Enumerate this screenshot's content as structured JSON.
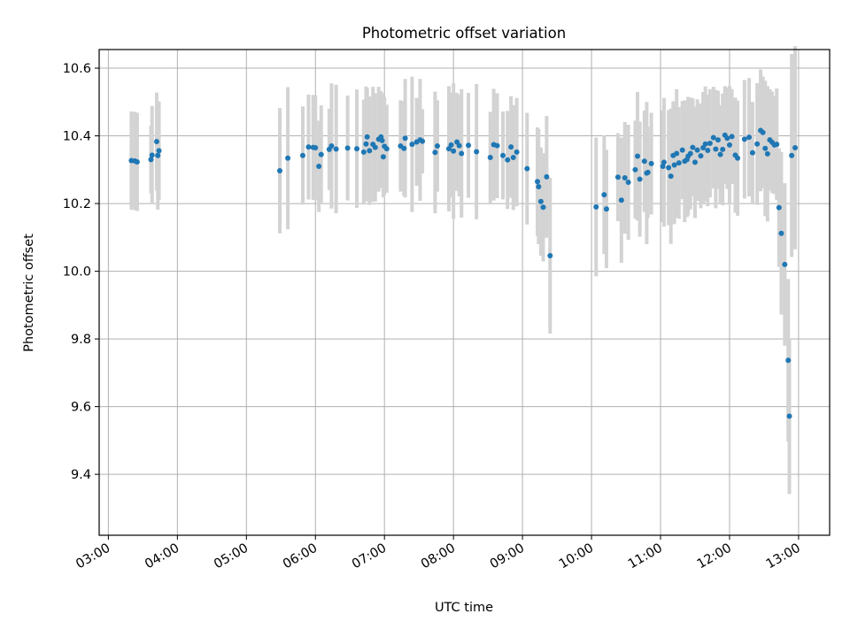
{
  "chart_data": {
    "type": "scatter",
    "title": "Photometric offset variation",
    "xlabel": "UTC time",
    "ylabel": "Photometric offset",
    "xlim": [
      "02:52",
      "13:27"
    ],
    "ylim": [
      9.22,
      10.655
    ],
    "x_ticks": [
      "03:00",
      "04:00",
      "05:00",
      "06:00",
      "07:00",
      "08:00",
      "09:00",
      "10:00",
      "11:00",
      "12:00",
      "13:00"
    ],
    "y_ticks": [
      "9.4",
      "9.6",
      "9.8",
      "10.0",
      "10.2",
      "10.4",
      "10.6"
    ],
    "grid": true,
    "colors": {
      "points": "#1f77b4",
      "error_bars": "#d3d3d3",
      "grid": "#b0b0b0"
    },
    "x": [
      "03:20",
      "03:23",
      "03:25",
      "03:37",
      "03:38",
      "03:42",
      "03:43",
      "03:44",
      "05:29",
      "05:36",
      "05:49",
      "05:54",
      "05:58",
      "06:00",
      "06:03",
      "06:05",
      "06:12",
      "06:14",
      "06:18",
      "06:28",
      "06:36",
      "06:42",
      "06:44",
      "06:45",
      "06:47",
      "06:50",
      "06:52",
      "06:55",
      "06:57",
      "06:58",
      "06:59",
      "07:00",
      "07:02",
      "07:14",
      "07:17",
      "07:18",
      "07:24",
      "07:28",
      "07:31",
      "07:33",
      "07:44",
      "07:46",
      "07:56",
      "07:58",
      "08:00",
      "08:03",
      "08:05",
      "08:07",
      "08:13",
      "08:20",
      "08:32",
      "08:35",
      "08:38",
      "08:43",
      "08:47",
      "08:50",
      "08:52",
      "08:55",
      "09:04",
      "09:13",
      "09:14",
      "09:16",
      "09:18",
      "09:21",
      "09:24",
      "10:04",
      "10:11",
      "10:13",
      "10:23",
      "10:26",
      "10:29",
      "10:32",
      "10:38",
      "10:40",
      "10:42",
      "10:46",
      "10:48",
      "10:49",
      "10:52",
      "11:02",
      "11:03",
      "11:07",
      "11:09",
      "11:11",
      "11:12",
      "11:14",
      "11:16",
      "11:19",
      "11:21",
      "11:23",
      "11:24",
      "11:26",
      "11:28",
      "11:30",
      "11:32",
      "11:35",
      "11:37",
      "11:39",
      "11:41",
      "11:43",
      "11:46",
      "11:48",
      "11:50",
      "11:52",
      "11:54",
      "11:56",
      "11:58",
      "12:00",
      "12:02",
      "12:05",
      "12:07",
      "12:13",
      "12:17",
      "12:20",
      "12:24",
      "12:27",
      "12:29",
      "12:31",
      "12:33",
      "12:35",
      "12:37",
      "12:39",
      "12:41",
      "12:43",
      "12:45",
      "12:48",
      "12:51",
      "12:52",
      "12:54",
      "12:57"
    ],
    "y": [
      10.327,
      10.326,
      10.323,
      10.33,
      10.343,
      10.383,
      10.342,
      10.356,
      10.297,
      10.334,
      10.342,
      10.367,
      10.366,
      10.365,
      10.31,
      10.345,
      10.36,
      10.37,
      10.361,
      10.364,
      10.362,
      10.352,
      10.376,
      10.397,
      10.356,
      10.375,
      10.366,
      10.39,
      10.397,
      10.386,
      10.338,
      10.369,
      10.362,
      10.37,
      10.363,
      10.393,
      10.375,
      10.382,
      10.388,
      10.384,
      10.351,
      10.37,
      10.362,
      10.373,
      10.355,
      10.382,
      10.371,
      10.348,
      10.372,
      10.353,
      10.336,
      10.374,
      10.371,
      10.342,
      10.329,
      10.367,
      10.336,
      10.352,
      10.303,
      10.265,
      10.25,
      10.206,
      10.189,
      10.279,
      10.046,
      10.19,
      10.226,
      10.184,
      10.278,
      10.21,
      10.276,
      10.263,
      10.3,
      10.34,
      10.272,
      10.325,
      10.29,
      10.292,
      10.318,
      10.31,
      10.322,
      10.306,
      10.281,
      10.342,
      10.314,
      10.348,
      10.32,
      10.358,
      10.325,
      10.33,
      10.34,
      10.348,
      10.366,
      10.322,
      10.358,
      10.341,
      10.365,
      10.376,
      10.357,
      10.378,
      10.395,
      10.361,
      10.388,
      10.345,
      10.36,
      10.402,
      10.393,
      10.373,
      10.398,
      10.343,
      10.334,
      10.39,
      10.396,
      10.35,
      10.376,
      10.416,
      10.41,
      10.363,
      10.347,
      10.388,
      10.381,
      10.373,
      10.375,
      10.188,
      10.112,
      10.02,
      9.737,
      9.572,
      10.342,
      10.365
    ],
    "err": [
      0.145,
      0.145,
      0.145,
      0.1,
      0.145,
      0.145,
      0.16,
      0.145,
      0.185,
      0.21,
      0.145,
      0.155,
      0.155,
      0.155,
      0.135,
      0.145,
      0.12,
      0.185,
      0.19,
      0.155,
      0.175,
      0.155,
      0.17,
      0.145,
      0.16,
      0.17,
      0.16,
      0.155,
      0.135,
      0.14,
      0.12,
      0.145,
      0.13,
      0.135,
      0.14,
      0.175,
      0.2,
      0.13,
      0.18,
      0.095,
      0.18,
      0.135,
      0.185,
      0.155,
      0.2,
      0.145,
      0.15,
      0.19,
      0.155,
      0.2,
      0.135,
      0.165,
      0.155,
      0.13,
      0.145,
      0.15,
      0.155,
      0.16,
      0.165,
      0.16,
      0.17,
      0.16,
      0.16,
      0.18,
      0.23,
      0.205,
      0.175,
      0.175,
      0.13,
      0.185,
      0.165,
      0.17,
      0.145,
      0.19,
      0.17,
      0.15,
      0.21,
      0.135,
      0.15,
      0.165,
      0.19,
      0.17,
      0.2,
      0.16,
      0.175,
      0.19,
      0.165,
      0.145,
      0.18,
      0.17,
      0.175,
      0.165,
      0.145,
      0.165,
      0.15,
      0.155,
      0.165,
      0.17,
      0.165,
      0.16,
      0.15,
      0.175,
      0.145,
      0.145,
      0.165,
      0.145,
      0.15,
      0.175,
      0.14,
      0.17,
      0.17,
      0.175,
      0.175,
      0.15,
      0.18,
      0.18,
      0.165,
      0.2,
      0.2,
      0.15,
      0.15,
      0.145,
      0.165,
      0.175,
      0.24,
      0.24,
      0.24,
      0.23,
      0.3,
      0.3
    ]
  }
}
